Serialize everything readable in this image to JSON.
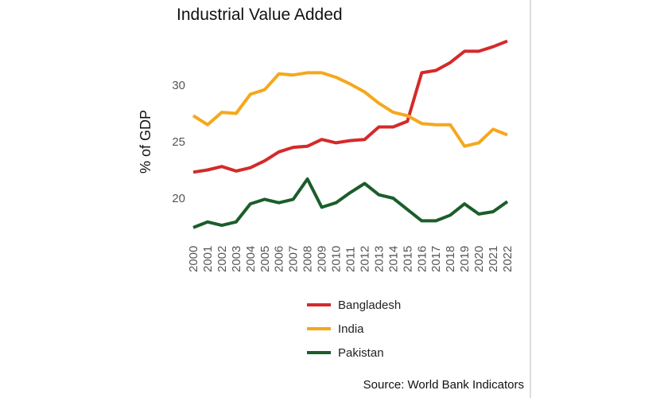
{
  "chart_data": {
    "type": "line",
    "title": "Industrial Value Added",
    "xlabel": "",
    "ylabel": "% of GDP",
    "x": [
      2000,
      2001,
      2002,
      2003,
      2004,
      2005,
      2006,
      2007,
      2008,
      2009,
      2010,
      2011,
      2012,
      2013,
      2014,
      2015,
      2016,
      2017,
      2018,
      2019,
      2020,
      2021,
      2022
    ],
    "yticks": [
      20,
      25,
      30
    ],
    "ylim": [
      17,
      34
    ],
    "grid": false,
    "legend_position": "bottom",
    "series": [
      {
        "name": "Bangladesh",
        "color": "#d42a2a",
        "values": [
          22.3,
          22.5,
          22.8,
          22.4,
          22.7,
          23.3,
          24.1,
          24.5,
          24.6,
          25.2,
          24.9,
          25.1,
          25.2,
          26.3,
          26.3,
          26.8,
          31.1,
          31.3,
          32.0,
          33.0,
          33.0,
          33.4,
          33.9
        ]
      },
      {
        "name": "India",
        "color": "#f5a81c",
        "values": [
          27.3,
          26.5,
          27.6,
          27.5,
          29.2,
          29.6,
          31.0,
          30.9,
          31.1,
          31.1,
          30.7,
          30.1,
          29.4,
          28.4,
          27.6,
          27.3,
          26.6,
          26.5,
          26.5,
          24.6,
          24.9,
          26.1,
          25.6
        ]
      },
      {
        "name": "Pakistan",
        "color": "#1a5e2a",
        "values": [
          17.4,
          17.9,
          17.6,
          17.9,
          19.5,
          19.9,
          19.6,
          19.9,
          21.7,
          19.2,
          19.6,
          20.5,
          21.3,
          20.3,
          20.0,
          19.0,
          18.0,
          18.0,
          18.5,
          19.5,
          18.6,
          18.8,
          19.7
        ]
      }
    ],
    "source": "Source: World Bank Indicators"
  }
}
